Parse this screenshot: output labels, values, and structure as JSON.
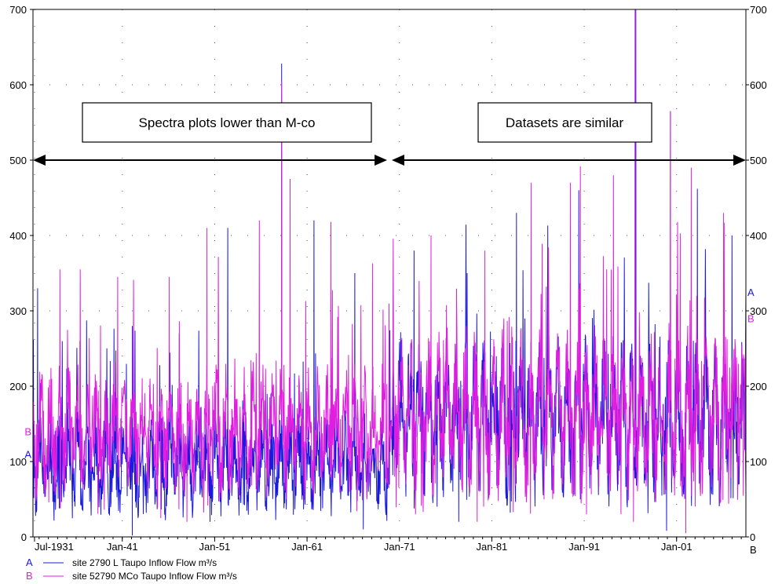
{
  "chart_data": {
    "type": "line",
    "x_tick_labels": [
      "Jul-1931",
      "Jan-41",
      "Jan-51",
      "Jan-61",
      "Jan-71",
      "Jan-81",
      "Jan-91",
      "Jan-01"
    ],
    "x_tick_dates": [
      "1931-07",
      "1941-01",
      "1951-01",
      "1961-01",
      "1971-01",
      "1981-01",
      "1991-01",
      "2001-01"
    ],
    "xlim": [
      "1931-05",
      "2008-07"
    ],
    "ylim": [
      0,
      700
    ],
    "y_ticks": [
      0,
      100,
      200,
      300,
      400,
      500,
      600,
      700
    ],
    "y_ticks_right": [
      0,
      100,
      200,
      300,
      400,
      500,
      600,
      700
    ],
    "right_axis_letter": "B",
    "grid": "dotted",
    "annotations": {
      "left_box": "Spectra plots lower than M-co",
      "right_box": "Datasets are similar",
      "arrow_level": 500,
      "arrow_left_span": [
        "1931-05",
        "1969-09"
      ],
      "arrow_right_span": [
        "1970-03",
        "2008-07"
      ]
    },
    "series": [
      {
        "key": "A",
        "name": "site 2790 L Taupo Inflow   Flow m³/s",
        "color": "#1a1adc",
        "start_value": 110,
        "end_value": 325,
        "peaks": [
          [
            "1931-11",
            330
          ],
          [
            "1936-06",
            260
          ],
          [
            "1942-02",
            280
          ],
          [
            "1947-03",
            270
          ],
          [
            "1952-06",
            410
          ],
          [
            "1958-04",
            628
          ],
          [
            "1961-10",
            420
          ],
          [
            "1966-03",
            350
          ],
          [
            "1972-08",
            380
          ],
          [
            "1978-05",
            350
          ],
          [
            "1983-09",
            430
          ],
          [
            "1990-06",
            460
          ],
          [
            "1996-08",
            700
          ],
          [
            "2000-05",
            565
          ],
          [
            "2003-04",
            462
          ],
          [
            "2007-01",
            400
          ]
        ],
        "troughs": [
          [
            "1942-02",
            2
          ],
          [
            "1950-07",
            20
          ],
          [
            "1967-02",
            10
          ],
          [
            "1977-06",
            20
          ],
          [
            "1999-12",
            8
          ]
        ]
      },
      {
        "key": "B",
        "name": "site 52790   MCo Taupo Inflow   Flow m³/s",
        "color": "#e01ee0",
        "start_value": 140,
        "end_value": 290,
        "peaks": [
          [
            "1934-04",
            355
          ],
          [
            "1940-07",
            345
          ],
          [
            "1946-02",
            345
          ],
          [
            "1950-03",
            410
          ],
          [
            "1955-11",
            420
          ],
          [
            "1958-04",
            605
          ],
          [
            "1959-03",
            475
          ],
          [
            "1963-08",
            418
          ],
          [
            "1968-02",
            363
          ],
          [
            "1974-06",
            400
          ],
          [
            "1980-04",
            380
          ],
          [
            "1985-04",
            470
          ],
          [
            "1989-07",
            470
          ],
          [
            "1990-08",
            492
          ],
          [
            "1994-03",
            480
          ],
          [
            "1996-07",
            700
          ],
          [
            "2000-05",
            565
          ],
          [
            "2002-08",
            490
          ],
          [
            "2006-02",
            430
          ]
        ],
        "troughs": [
          [
            "1945-03",
            25
          ],
          [
            "1948-01",
            20
          ],
          [
            "1972-10",
            30
          ],
          [
            "1979-06",
            20
          ],
          [
            "1991-04",
            30
          ],
          [
            "1996-05",
            20
          ],
          [
            "2002-01",
            5
          ]
        ]
      }
    ]
  }
}
